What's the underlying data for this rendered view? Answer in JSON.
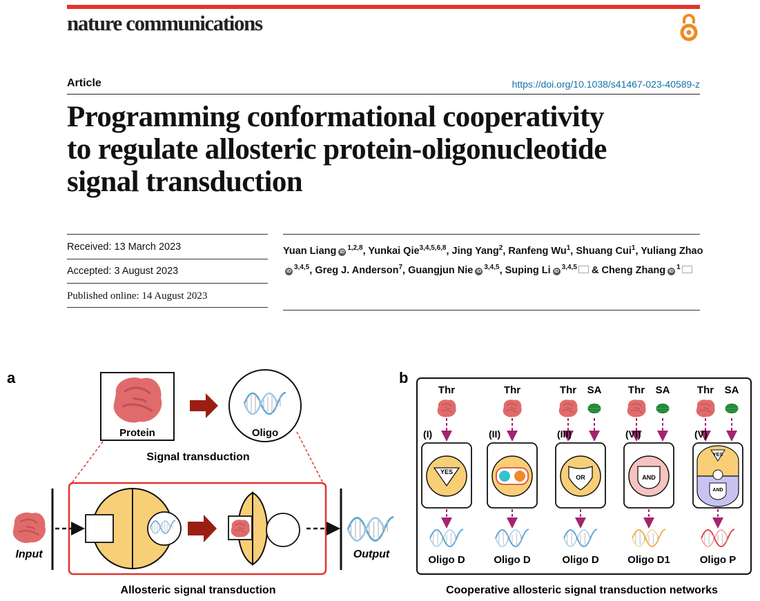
{
  "header": {
    "journal": "nature communications",
    "article_type": "Article",
    "doi": "https://doi.org/10.1038/s41467-023-40589-z",
    "title_lines": [
      "Programming conformational cooperativity",
      "to regulate allosteric protein-oligonucleotide",
      "signal transduction"
    ]
  },
  "dates": {
    "received": "Received: 13 March 2023",
    "accepted": "Accepted: 3 August 2023",
    "published": "Published online: 14 August 2023"
  },
  "authors": [
    {
      "name": "Yuan Liang",
      "orcid": true,
      "aff": "1,2,8",
      "sep": ", "
    },
    {
      "name": "Yunkai Qie",
      "orcid": false,
      "aff": "3,4,5,6,8",
      "sep": ", "
    },
    {
      "name": "Jing Yang",
      "orcid": false,
      "aff": "2",
      "sep": ", "
    },
    {
      "name": "Ranfeng Wu",
      "orcid": false,
      "aff": "1",
      "sep": ", "
    },
    {
      "name": "Shuang Cui",
      "orcid": false,
      "aff": "1",
      "sep": ", "
    },
    {
      "name": "Yuliang Zhao",
      "orcid": true,
      "aff": "3,4,5",
      "sep": ", "
    },
    {
      "name": "Greg J. Anderson",
      "orcid": false,
      "aff": "7",
      "sep": ", "
    },
    {
      "name": "Guangjun Nie",
      "orcid": true,
      "aff": "3,4,5",
      "sep": ", "
    },
    {
      "name": "Suping Li",
      "orcid": true,
      "aff": "3,4,5",
      "mail": true,
      "sep": " & "
    },
    {
      "name": "Cheng Zhang",
      "orcid": true,
      "aff": "1",
      "mail": true,
      "sep": ""
    }
  ],
  "figure": {
    "panel_a": {
      "letter": "a",
      "protein": "Protein",
      "oligo": "Oligo",
      "signal_transduction": "Signal transduction",
      "input": "Input",
      "output": "Output",
      "caption": "Allosteric signal transduction"
    },
    "panel_b": {
      "letter": "b",
      "caption": "Cooperative allosteric signal transduction networks",
      "columns": [
        {
          "roman": "(I)",
          "inputs": [
            "Thr"
          ],
          "gate": "YES",
          "output": "Oligo D",
          "oligo_color": "#5aa6d8"
        },
        {
          "roman": "(II)",
          "inputs": [
            "Thr"
          ],
          "gate": "",
          "output": "Oligo D",
          "oligo_color": "#5aa6d8"
        },
        {
          "roman": "(III)",
          "inputs": [
            "Thr",
            "SA"
          ],
          "gate": "OR",
          "output": "Oligo D",
          "oligo_color": "#5aa6d8"
        },
        {
          "roman": "(VI)",
          "inputs": [
            "Thr",
            "SA"
          ],
          "gate": "AND",
          "output": "Oligo D1",
          "oligo_color": "#f2b04a"
        },
        {
          "roman": "(V)",
          "inputs": [
            "Thr",
            "SA"
          ],
          "gate": "YES",
          "gate2": "AND",
          "output": "Oligo P",
          "oligo_color": "#e0474c"
        }
      ]
    }
  },
  "colors": {
    "accent_red": "#e3342b",
    "doi_blue": "#1570a6",
    "domain_yellow": "#f8cf77",
    "protein_pink": "#e06b6b",
    "sa_green": "#2f9d45",
    "arrow_magenta": "#a3246f",
    "dark_red_arrow": "#9a1f12",
    "oa_orange": "#f08a24"
  }
}
